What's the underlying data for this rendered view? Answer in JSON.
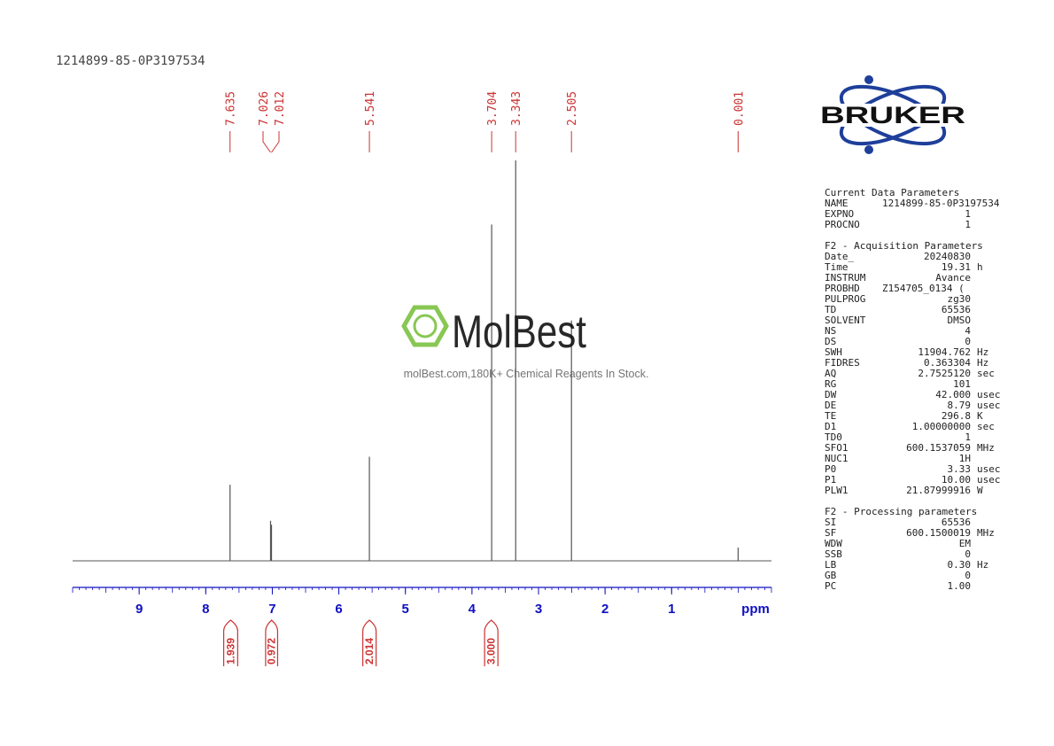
{
  "title": "1214899-85-0P3197534",
  "chart_data": {
    "type": "nmr",
    "xlabel": "ppm",
    "xlim": [
      10,
      -0.5
    ],
    "xticks": [
      9,
      8,
      7,
      6,
      5,
      4,
      3,
      2,
      1
    ],
    "ylim": [
      0,
      100
    ],
    "x": [
      7.635,
      7.026,
      7.012,
      5.541,
      3.704,
      3.343,
      2.505,
      0.001
    ],
    "values": [
      19,
      10,
      9,
      26,
      84,
      100,
      60,
      3.3
    ],
    "color": "#555555",
    "label_color": "#cc3333",
    "axis_color": "#1010c0",
    "integrals": {
      "ranges": [
        [
          7.73,
          7.52
        ],
        [
          7.1,
          6.92
        ],
        [
          5.64,
          5.44
        ],
        [
          3.81,
          3.61
        ]
      ],
      "values": [
        1.939,
        0.972,
        2.014,
        3
      ],
      "value_labels": [
        "1.939",
        "0.972",
        "2.014",
        "3.000"
      ]
    }
  },
  "watermark": {
    "name": "MolBest",
    "tagline": "molBest.com,180K+ Chemical Reagents In Stock."
  },
  "logo": {
    "text": "BRUKER"
  },
  "parameters": [
    {
      "heading": "Current Data Parameters",
      "rows": [
        [
          "NAME",
          "1214899-85-0P3197534"
        ],
        [
          "EXPNO",
          "1"
        ],
        [
          "PROCNO",
          "1"
        ]
      ]
    },
    {
      "heading": "F2 - Acquisition Parameters",
      "rows": [
        [
          "Date_",
          "20240830"
        ],
        [
          "Time",
          "19.31",
          "h"
        ],
        [
          "INSTRUM",
          "Avance"
        ],
        [
          "PROBHD",
          "Z154705_0134 ("
        ],
        [
          "PULPROG",
          "zg30"
        ],
        [
          "TD",
          "65536"
        ],
        [
          "SOLVENT",
          "DMSO"
        ],
        [
          "NS",
          "4"
        ],
        [
          "DS",
          "0"
        ],
        [
          "SWH",
          "11904.762",
          "Hz"
        ],
        [
          "FIDRES",
          "0.363304",
          "Hz"
        ],
        [
          "AQ",
          "2.7525120",
          "sec"
        ],
        [
          "RG",
          "101"
        ],
        [
          "DW",
          "42.000",
          "usec"
        ],
        [
          "DE",
          "8.79",
          "usec"
        ],
        [
          "TE",
          "296.8",
          "K"
        ],
        [
          "D1",
          "1.00000000",
          "sec"
        ],
        [
          "TD0",
          "1"
        ],
        [
          "SFO1",
          "600.1537059",
          "MHz"
        ],
        [
          "NUC1",
          "1H"
        ],
        [
          "P0",
          "3.33",
          "usec"
        ],
        [
          "P1",
          "10.00",
          "usec"
        ],
        [
          "PLW1",
          "21.87999916",
          "W"
        ]
      ]
    },
    {
      "heading": "F2 - Processing parameters",
      "rows": [
        [
          "SI",
          "65536"
        ],
        [
          "SF",
          "600.1500019",
          "MHz"
        ],
        [
          "WDW",
          "EM"
        ],
        [
          "SSB",
          "0"
        ],
        [
          "LB",
          "0.30",
          "Hz"
        ],
        [
          "GB",
          "0"
        ],
        [
          "PC",
          "1.00"
        ]
      ]
    }
  ]
}
